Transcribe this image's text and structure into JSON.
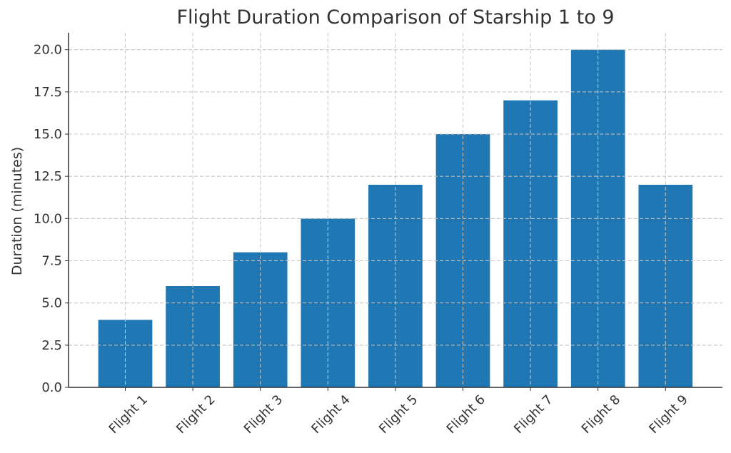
{
  "chart_data": {
    "type": "bar",
    "title": "Flight Duration Comparison of Starship 1 to 9",
    "xlabel": "",
    "ylabel": "Duration (minutes)",
    "categories": [
      "Flight 1",
      "Flight 2",
      "Flight 3",
      "Flight 4",
      "Flight 5",
      "Flight 6",
      "Flight 7",
      "Flight 8",
      "Flight 9"
    ],
    "values": [
      4,
      6,
      8,
      10,
      12,
      15,
      17,
      20,
      12
    ],
    "ylim": [
      0,
      21
    ],
    "yticks": [
      "0.0",
      "2.5",
      "5.0",
      "7.5",
      "10.0",
      "12.5",
      "15.0",
      "17.5",
      "20.0"
    ],
    "grid": true,
    "bar_color": "#1f77b4",
    "xtick_rotation": 45
  }
}
